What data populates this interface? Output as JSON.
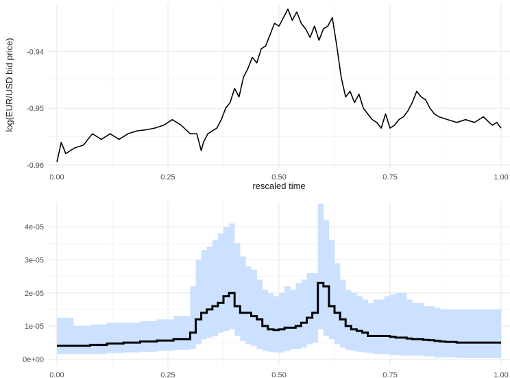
{
  "chart_data": [
    {
      "type": "line",
      "title": "",
      "xlabel": "rescaled time",
      "ylabel": "log(EUR/USD bid price)",
      "xlim": [
        -0.02,
        1.02
      ],
      "ylim": [
        -0.9605,
        -0.9315
      ],
      "x_ticks": [
        0.0,
        0.25,
        0.5,
        0.75,
        1.0
      ],
      "x_tick_labels": [
        "0.00",
        "0.25",
        "0.50",
        "0.75",
        "1.00"
      ],
      "y_ticks": [
        -0.96,
        -0.95,
        -0.94
      ],
      "y_tick_labels": [
        "-0.96",
        "-0.95",
        "-0.94"
      ],
      "grid": true,
      "color": "#000000",
      "series": [
        {
          "x": [
            0.0,
            0.01,
            0.02,
            0.04,
            0.06,
            0.08,
            0.1,
            0.12,
            0.14,
            0.16,
            0.18,
            0.2,
            0.22,
            0.24,
            0.26,
            0.28,
            0.3,
            0.315,
            0.325,
            0.33,
            0.34,
            0.36,
            0.37,
            0.38,
            0.39,
            0.4,
            0.41,
            0.42,
            0.43,
            0.44,
            0.45,
            0.46,
            0.47,
            0.48,
            0.49,
            0.5,
            0.51,
            0.52,
            0.53,
            0.54,
            0.55,
            0.56,
            0.57,
            0.58,
            0.59,
            0.6,
            0.61,
            0.62,
            0.63,
            0.64,
            0.65,
            0.66,
            0.67,
            0.68,
            0.69,
            0.7,
            0.71,
            0.72,
            0.73,
            0.74,
            0.75,
            0.76,
            0.77,
            0.78,
            0.79,
            0.8,
            0.81,
            0.82,
            0.83,
            0.84,
            0.85,
            0.86,
            0.88,
            0.9,
            0.92,
            0.94,
            0.96,
            0.98,
            0.99,
            1.0
          ],
          "y": [
            -0.9595,
            -0.956,
            -0.958,
            -0.957,
            -0.9565,
            -0.9545,
            -0.9555,
            -0.9545,
            -0.9555,
            -0.9545,
            -0.954,
            -0.9538,
            -0.9535,
            -0.953,
            -0.952,
            -0.953,
            -0.9545,
            -0.9545,
            -0.9575,
            -0.956,
            -0.9545,
            -0.9535,
            -0.952,
            -0.95,
            -0.949,
            -0.9465,
            -0.948,
            -0.9445,
            -0.943,
            -0.941,
            -0.942,
            -0.9395,
            -0.939,
            -0.937,
            -0.935,
            -0.9355,
            -0.934,
            -0.9325,
            -0.9345,
            -0.933,
            -0.935,
            -0.936,
            -0.9375,
            -0.9355,
            -0.938,
            -0.936,
            -0.9355,
            -0.934,
            -0.939,
            -0.9445,
            -0.948,
            -0.947,
            -0.949,
            -0.9475,
            -0.95,
            -0.951,
            -0.952,
            -0.9525,
            -0.9535,
            -0.951,
            -0.9535,
            -0.953,
            -0.952,
            -0.9515,
            -0.9505,
            -0.949,
            -0.947,
            -0.948,
            -0.9485,
            -0.95,
            -0.951,
            -0.9515,
            -0.952,
            -0.9525,
            -0.952,
            -0.9525,
            -0.9515,
            -0.953,
            -0.9525,
            -0.9535
          ]
        }
      ]
    },
    {
      "type": "area",
      "title": "",
      "xlabel": "",
      "ylabel": "",
      "xlim": [
        -0.02,
        1.02
      ],
      "ylim": [
        -2e-06,
        4.75e-05
      ],
      "x_ticks": [
        0.0,
        0.25,
        0.5,
        0.75,
        1.0
      ],
      "x_tick_labels": [
        "0.00",
        "0.25",
        "0.50",
        "0.75",
        "1.00"
      ],
      "y_ticks": [
        0,
        1e-05,
        2e-05,
        3e-05,
        4e-05
      ],
      "y_tick_labels": [
        "0e+00",
        "1e-05",
        "2e-05",
        "3e-05",
        "4e-05"
      ],
      "grid": true,
      "band_color": "#cce0ff",
      "line_color": "#000000",
      "step_edges": [
        0.0,
        0.0375,
        0.075,
        0.1125,
        0.15,
        0.1875,
        0.225,
        0.2625,
        0.3,
        0.3125,
        0.325,
        0.3375,
        0.35,
        0.3625,
        0.375,
        0.3875,
        0.4,
        0.4125,
        0.425,
        0.4375,
        0.45,
        0.4625,
        0.475,
        0.4875,
        0.5,
        0.5125,
        0.525,
        0.5375,
        0.55,
        0.5625,
        0.575,
        0.5875,
        0.6,
        0.6125,
        0.625,
        0.6375,
        0.65,
        0.6625,
        0.675,
        0.6875,
        0.7,
        0.7125,
        0.725,
        0.7375,
        0.75,
        0.7625,
        0.775,
        0.7875,
        0.8,
        0.8125,
        0.825,
        0.8375,
        0.85,
        0.8625,
        0.875,
        0.9,
        1.0
      ],
      "series": [
        {
          "name": "",
          "values": [
            4e-06,
            4e-06,
            4.3e-06,
            4.7e-06,
            5e-06,
            5.3e-06,
            5.6e-06,
            6e-06,
            8e-06,
            1.2e-05,
            1.4e-05,
            1.5e-05,
            1.6e-05,
            1.7e-05,
            1.9e-05,
            2e-05,
            1.6e-05,
            1.4e-05,
            1.4e-05,
            1.3e-05,
            1.2e-05,
            1e-05,
            9e-06,
            8.8e-06,
            9e-06,
            9.5e-06,
            9.5e-06,
            1e-05,
            1.1e-05,
            1.25e-05,
            1.4e-05,
            2.3e-05,
            2.2e-05,
            1.6e-05,
            1.4e-05,
            1.2e-05,
            1e-05,
            9e-06,
            8.5e-06,
            8e-06,
            7e-06,
            7e-06,
            7e-06,
            7e-06,
            6.7e-06,
            6.5e-06,
            6.5e-06,
            6.2e-06,
            6e-06,
            6e-06,
            5.8e-06,
            5.7e-06,
            5.5e-06,
            5.3e-06,
            5.2e-06,
            5e-06
          ]
        }
      ],
      "band_lower": [
        1.5e-06,
        1.5e-06,
        1.5e-06,
        1.8e-06,
        2e-06,
        2.2e-06,
        2.5e-06,
        2.8e-06,
        3e-06,
        4.5e-06,
        6e-06,
        6.5e-06,
        7e-06,
        8e-06,
        8.5e-06,
        9e-06,
        7e-06,
        5.5e-06,
        4.5e-06,
        4e-06,
        3e-06,
        2.5e-06,
        2.2e-06,
        2e-06,
        2e-06,
        2.5e-06,
        3e-06,
        3e-06,
        3.5e-06,
        4.5e-06,
        5e-06,
        9e-06,
        7e-06,
        6e-06,
        4.5e-06,
        3.5e-06,
        2.8e-06,
        2.5e-06,
        2.2e-06,
        2e-06,
        1.8e-06,
        1.5e-06,
        1.5e-06,
        1.5e-06,
        1.2e-06,
        1.2e-06,
        1e-06,
        1e-06,
        1e-06,
        1e-06,
        8e-07,
        8e-07,
        5e-07,
        5e-07,
        5e-07,
        3e-07
      ],
      "band_upper": [
        1.25e-05,
        1e-05,
        1.05e-05,
        1.1e-05,
        1.1e-05,
        1.15e-05,
        1.2e-05,
        1.3e-05,
        2.2e-05,
        3e-05,
        3.3e-05,
        3.4e-05,
        3.6e-05,
        3.8e-05,
        4e-05,
        4.1e-05,
        3.5e-05,
        3.1e-05,
        2.8e-05,
        2.7e-05,
        2.4e-05,
        2.1e-05,
        2e-05,
        1.9e-05,
        2e-05,
        2.2e-05,
        2.1e-05,
        2.3e-05,
        2.4e-05,
        2.6e-05,
        2.6e-05,
        4.7e-05,
        4.2e-05,
        3.6e-05,
        2.9e-05,
        2.4e-05,
        2.1e-05,
        2e-05,
        1.9e-05,
        1.8e-05,
        1.7e-05,
        1.8e-05,
        1.8e-05,
        1.9e-05,
        1.95e-05,
        2e-05,
        2e-05,
        1.8e-05,
        1.7e-05,
        1.7e-05,
        1.6e-05,
        1.6e-05,
        1.55e-05,
        1.5e-05,
        1.5e-05,
        1.5e-05
      ]
    }
  ]
}
